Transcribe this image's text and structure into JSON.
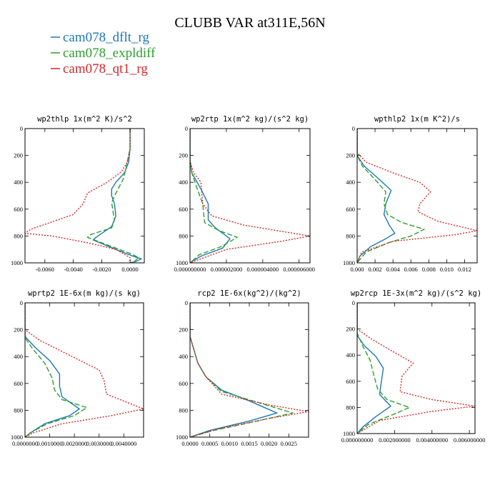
{
  "title": "CLUBB VAR at311E,56N",
  "colors": {
    "dflt": "#1f77b4",
    "expl": "#2ca02c",
    "qt1": "#d62728"
  },
  "chart_data": [
    {
      "type": "line",
      "title": "wp2thlp  1x(m^2 K)/s^2",
      "x_ticks": [
        "-0.0060",
        "-0.0040",
        "-0.0020",
        "0.0000"
      ],
      "x_tick_values": [
        -0.006,
        -0.004,
        -0.002,
        0.0
      ],
      "xlim": [
        -0.0074,
        0.001
      ],
      "y_ticks": [
        "0",
        "200",
        "400",
        "600",
        "800",
        "1000"
      ],
      "ylim": [
        1000,
        0
      ],
      "series": [
        {
          "name": "cam078_dflt_rg",
          "style": "solid",
          "x": [
            0.0,
            0.0,
            -0.0001,
            -0.0004,
            -0.001,
            -0.0013,
            -0.0013,
            -0.0011,
            -0.001,
            -0.0013,
            -0.0024,
            -0.0026,
            -0.001,
            0.0002,
            0.0008,
            0.0004,
            0.0
          ],
          "y": [
            0,
            150,
            250,
            330,
            400,
            450,
            500,
            560,
            650,
            730,
            810,
            830,
            900,
            950,
            970,
            990,
            1000
          ]
        },
        {
          "name": "cam078_expldiff",
          "style": "dashed",
          "x": [
            0.0,
            0.0,
            -0.0001,
            -0.0003,
            -0.0005,
            -0.0009,
            -0.0013,
            -0.0012,
            -0.0011,
            -0.0013,
            -0.0028,
            -0.003,
            -0.0015,
            0.0,
            0.0006,
            0.0003,
            0.0
          ],
          "y": [
            0,
            150,
            200,
            300,
            380,
            460,
            550,
            620,
            680,
            740,
            790,
            810,
            870,
            930,
            960,
            990,
            1000
          ]
        },
        {
          "name": "cam078_qt1_rg",
          "style": "dotted",
          "x": [
            0.0,
            0.0,
            -0.0002,
            -0.0006,
            -0.0016,
            -0.003,
            -0.0033,
            -0.004,
            -0.007,
            -0.0074,
            -0.0055,
            -0.003,
            -0.001,
            0.0,
            0.0
          ],
          "y": [
            0,
            150,
            250,
            320,
            400,
            480,
            560,
            640,
            750,
            780,
            800,
            850,
            900,
            960,
            1000
          ]
        }
      ]
    },
    {
      "type": "line",
      "title": "wp2rtp  1x(m^2 kg)/(s^2 kg)",
      "x_ticks": [
        "0.000000000",
        "0.000002000",
        "0.000004000",
        "0.000006000"
      ],
      "x_tick_values": [
        0.0,
        2e-06,
        4e-06,
        6e-06
      ],
      "xlim": [
        0.0,
        6.6e-06
      ],
      "y_ticks": [
        "0",
        "200",
        "400",
        "600",
        "800",
        "1000"
      ],
      "ylim": [
        1000,
        0
      ],
      "series": [
        {
          "name": "cam078_dflt_rg",
          "style": "solid",
          "x": [
            0.0,
            0.0,
            1e-07,
            6e-07,
            1e-06,
            1e-06,
            1.4e-06,
            2.2e-06,
            1.8e-06,
            6e-07,
            1e-07,
            0.0
          ],
          "y": [
            0,
            240,
            330,
            450,
            560,
            680,
            740,
            820,
            890,
            950,
            990,
            1000
          ]
        },
        {
          "name": "cam078_expldiff",
          "style": "dashed",
          "x": [
            0.0,
            0.0,
            1e-07,
            4e-07,
            7e-07,
            8e-07,
            1.6e-06,
            2.6e-06,
            1.7e-06,
            5e-07,
            1e-07,
            0.0
          ],
          "y": [
            0,
            240,
            330,
            450,
            560,
            700,
            760,
            810,
            880,
            940,
            990,
            1000
          ]
        },
        {
          "name": "cam078_qt1_rg",
          "style": "dotted",
          "x": [
            0.0,
            0.0,
            2e-07,
            6e-07,
            7e-07,
            1.2e-06,
            3e-06,
            6.6e-06,
            5e-06,
            2e-06,
            4e-07,
            0.0
          ],
          "y": [
            0,
            240,
            330,
            400,
            560,
            650,
            720,
            800,
            840,
            900,
            980,
            1000
          ]
        }
      ]
    },
    {
      "type": "line",
      "title": "wpthlp2  1x(m K^2)/s",
      "x_ticks": [
        "0.000",
        "0.002",
        "0.004",
        "0.006",
        "0.008",
        "0.010",
        "0.012"
      ],
      "x_tick_values": [
        0.0,
        0.002,
        0.004,
        0.006,
        0.008,
        0.01,
        0.012
      ],
      "xlim": [
        0.0,
        0.0134
      ],
      "y_ticks": [
        "0",
        "200",
        "400",
        "600",
        "800",
        "1000"
      ],
      "ylim": [
        1000,
        0
      ],
      "series": [
        {
          "name": "cam078_dflt_rg",
          "style": "solid",
          "x": [
            0.0,
            0.0,
            0.0008,
            0.0025,
            0.0038,
            0.0032,
            0.003,
            0.0036,
            0.0042,
            0.0032,
            0.0015,
            0.0003,
            0.0
          ],
          "y": [
            0,
            200,
            280,
            380,
            460,
            560,
            640,
            720,
            780,
            820,
            880,
            950,
            1000
          ]
        },
        {
          "name": "cam078_expldiff",
          "style": "dashed",
          "x": [
            0.0,
            0.0,
            0.0006,
            0.002,
            0.0032,
            0.003,
            0.0034,
            0.005,
            0.0075,
            0.006,
            0.0035,
            0.001,
            0.0
          ],
          "y": [
            0,
            200,
            280,
            380,
            470,
            560,
            640,
            700,
            750,
            800,
            850,
            920,
            1000
          ]
        },
        {
          "name": "cam078_qt1_rg",
          "style": "dotted",
          "x": [
            0.0,
            0.0,
            0.001,
            0.004,
            0.007,
            0.0082,
            0.007,
            0.0068,
            0.009,
            0.0134,
            0.011,
            0.004,
            0.0005,
            0.0
          ],
          "y": [
            0,
            180,
            250,
            330,
            400,
            470,
            560,
            620,
            690,
            760,
            790,
            840,
            920,
            1000
          ]
        }
      ]
    },
    {
      "type": "line",
      "title": "wprtp2  1E-6x(m kg)/(s kg)",
      "x_ticks": [
        "0.0000000",
        "0.0010000",
        "0.0020000",
        "0.0030000",
        "0.0040000"
      ],
      "x_tick_values": [
        0.0,
        0.001,
        0.002,
        0.003,
        0.004
      ],
      "xlim": [
        0.0,
        0.0048
      ],
      "y_ticks": [
        "0",
        "200",
        "400",
        "600",
        "800",
        "1000"
      ],
      "ylim": [
        1000,
        0
      ],
      "series": [
        {
          "name": "cam078_dflt_rg",
          "style": "solid",
          "x": [
            0.0,
            0.0,
            0.0004,
            0.001,
            0.0014,
            0.0014,
            0.0015,
            0.0022,
            0.0018,
            0.0008,
            0.0002,
            0.0
          ],
          "y": [
            0,
            250,
            330,
            430,
            530,
            620,
            700,
            790,
            840,
            900,
            970,
            1000
          ]
        },
        {
          "name": "cam078_expldiff",
          "style": "dashed",
          "x": [
            0.0,
            0.0,
            0.0003,
            0.0008,
            0.0011,
            0.0012,
            0.0015,
            0.0025,
            0.002,
            0.0009,
            0.0002,
            0.0
          ],
          "y": [
            0,
            260,
            340,
            450,
            560,
            650,
            720,
            780,
            840,
            900,
            970,
            1000
          ]
        },
        {
          "name": "cam078_qt1_rg",
          "style": "dotted",
          "x": [
            0.0,
            0.0,
            0.0006,
            0.0018,
            0.003,
            0.0032,
            0.0033,
            0.0048,
            0.0035,
            0.0015,
            0.0003,
            0.0
          ],
          "y": [
            0,
            200,
            280,
            390,
            500,
            580,
            680,
            790,
            840,
            900,
            970,
            1000
          ]
        }
      ]
    },
    {
      "type": "line",
      "title": "rcp2  1E-6x(kg^2)/(kg^2)",
      "x_ticks": [
        "0.0000",
        "0.0005",
        "0.0010",
        "0.0015",
        "0.0020",
        "0.0025"
      ],
      "x_tick_values": [
        0.0,
        0.0005,
        0.001,
        0.0015,
        0.002,
        0.0025
      ],
      "xlim": [
        0.0,
        0.003
      ],
      "y_ticks": [
        "0",
        "200",
        "400",
        "600",
        "800",
        "1000"
      ],
      "ylim": [
        1000,
        0
      ],
      "series": [
        {
          "name": "cam078_dflt_rg",
          "style": "solid",
          "x": [
            0.0,
            0.0,
            0.0001,
            0.0002,
            0.0004,
            0.0008,
            0.0015,
            0.0022,
            0.0015,
            0.0005,
            0.0
          ],
          "y": [
            0,
            250,
            350,
            450,
            550,
            650,
            730,
            820,
            880,
            950,
            1000
          ]
        },
        {
          "name": "cam078_expldiff",
          "style": "dashed",
          "x": [
            0.0,
            0.0,
            0.0001,
            0.0002,
            0.0004,
            0.0008,
            0.0017,
            0.0026,
            0.0017,
            0.0006,
            0.0
          ],
          "y": [
            0,
            250,
            350,
            450,
            550,
            660,
            740,
            820,
            880,
            950,
            1000
          ]
        },
        {
          "name": "cam078_qt1_rg",
          "style": "dotted",
          "x": [
            0.0,
            0.0,
            0.0001,
            0.0002,
            0.0004,
            0.0008,
            0.002,
            0.003,
            0.002,
            0.0007,
            0.0
          ],
          "y": [
            0,
            250,
            350,
            450,
            550,
            680,
            760,
            810,
            860,
            940,
            1000
          ]
        }
      ]
    },
    {
      "type": "line",
      "title": "wp2rcp  1E-3x(m^2 kg)/(s^2 kg)",
      "x_ticks": [
        "0.000000000",
        "0.002000000",
        "0.004000000",
        "0.006000000"
      ],
      "x_tick_values": [
        0.0,
        0.002,
        0.004,
        0.006
      ],
      "xlim": [
        0.0,
        0.0063
      ],
      "y_ticks": [
        "0",
        "200",
        "400",
        "600",
        "800",
        "1000"
      ],
      "ylim": [
        1000,
        0
      ],
      "series": [
        {
          "name": "cam078_dflt_rg",
          "style": "solid",
          "x": [
            0.0,
            0.0,
            0.0004,
            0.001,
            0.0014,
            0.0013,
            0.0012,
            0.0018,
            0.001,
            0.0003,
            0.0
          ],
          "y": [
            0,
            250,
            330,
            410,
            500,
            600,
            700,
            790,
            870,
            950,
            1000
          ]
        },
        {
          "name": "cam078_expldiff",
          "style": "dashed",
          "x": [
            0.0,
            0.0,
            0.0003,
            0.0007,
            0.0009,
            0.0011,
            0.0016,
            0.0028,
            0.002,
            0.0006,
            0.0
          ],
          "y": [
            0,
            230,
            330,
            440,
            560,
            660,
            740,
            800,
            850,
            930,
            1000
          ]
        },
        {
          "name": "cam078_qt1_rg",
          "style": "dotted",
          "x": [
            0.0,
            0.0,
            0.0008,
            0.002,
            0.003,
            0.0024,
            0.0023,
            0.004,
            0.0063,
            0.004,
            0.0012,
            0.0
          ],
          "y": [
            0,
            200,
            280,
            380,
            460,
            560,
            680,
            740,
            790,
            830,
            900,
            1000
          ]
        }
      ]
    }
  ]
}
